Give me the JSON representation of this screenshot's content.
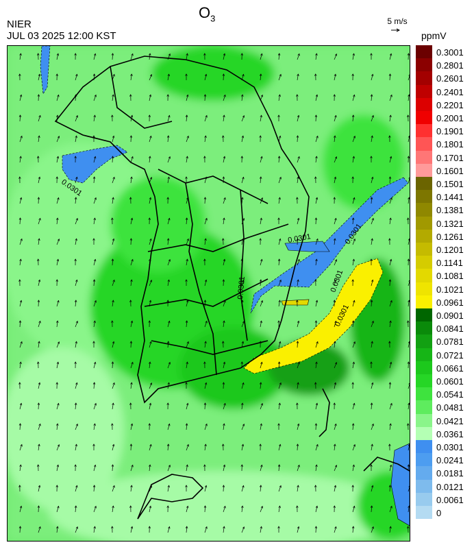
{
  "header": {
    "org": "NIER",
    "datetime": "JUL 03 2025 12:00 KST",
    "title_main": "O",
    "title_sub": "3",
    "wind_ref": "5 m/s",
    "unit": "ppmV"
  },
  "contour_label": "0.0301",
  "legend": {
    "labels": [
      "0.3001",
      "0.2801",
      "0.2601",
      "0.2401",
      "0.2201",
      "0.2001",
      "0.1901",
      "0.1801",
      "0.1701",
      "0.1601",
      "0.1501",
      "0.1441",
      "0.1381",
      "0.1321",
      "0.1261",
      "0.1201",
      "0.1141",
      "0.1081",
      "0.1021",
      "0.0961",
      "0.0901",
      "0.0841",
      "0.0781",
      "0.0721",
      "0.0661",
      "0.0601",
      "0.0541",
      "0.0481",
      "0.0421",
      "0.0361",
      "0.0301",
      "0.0241",
      "0.0181",
      "0.0121",
      "0.0061",
      "0"
    ],
    "colors": [
      "#6b0000",
      "#8b0000",
      "#a30000",
      "#bf0000",
      "#dc0000",
      "#f00000",
      "#ff3030",
      "#ff5555",
      "#ff7676",
      "#ff9a9a",
      "#6b6400",
      "#7d7600",
      "#8f8800",
      "#a19900",
      "#b3aa00",
      "#c5bb00",
      "#d5cc00",
      "#e3d900",
      "#efe400",
      "#faf000",
      "#006600",
      "#0a8a0a",
      "#12a012",
      "#16b516",
      "#1cc81c",
      "#26d626",
      "#3ee33e",
      "#5eec5e",
      "#8af58a",
      "#b4ffb4",
      "#3f8ff0",
      "#4d9df0",
      "#64abee",
      "#7ebbed",
      "#98cbee",
      "#b4dbf2"
    ]
  }
}
